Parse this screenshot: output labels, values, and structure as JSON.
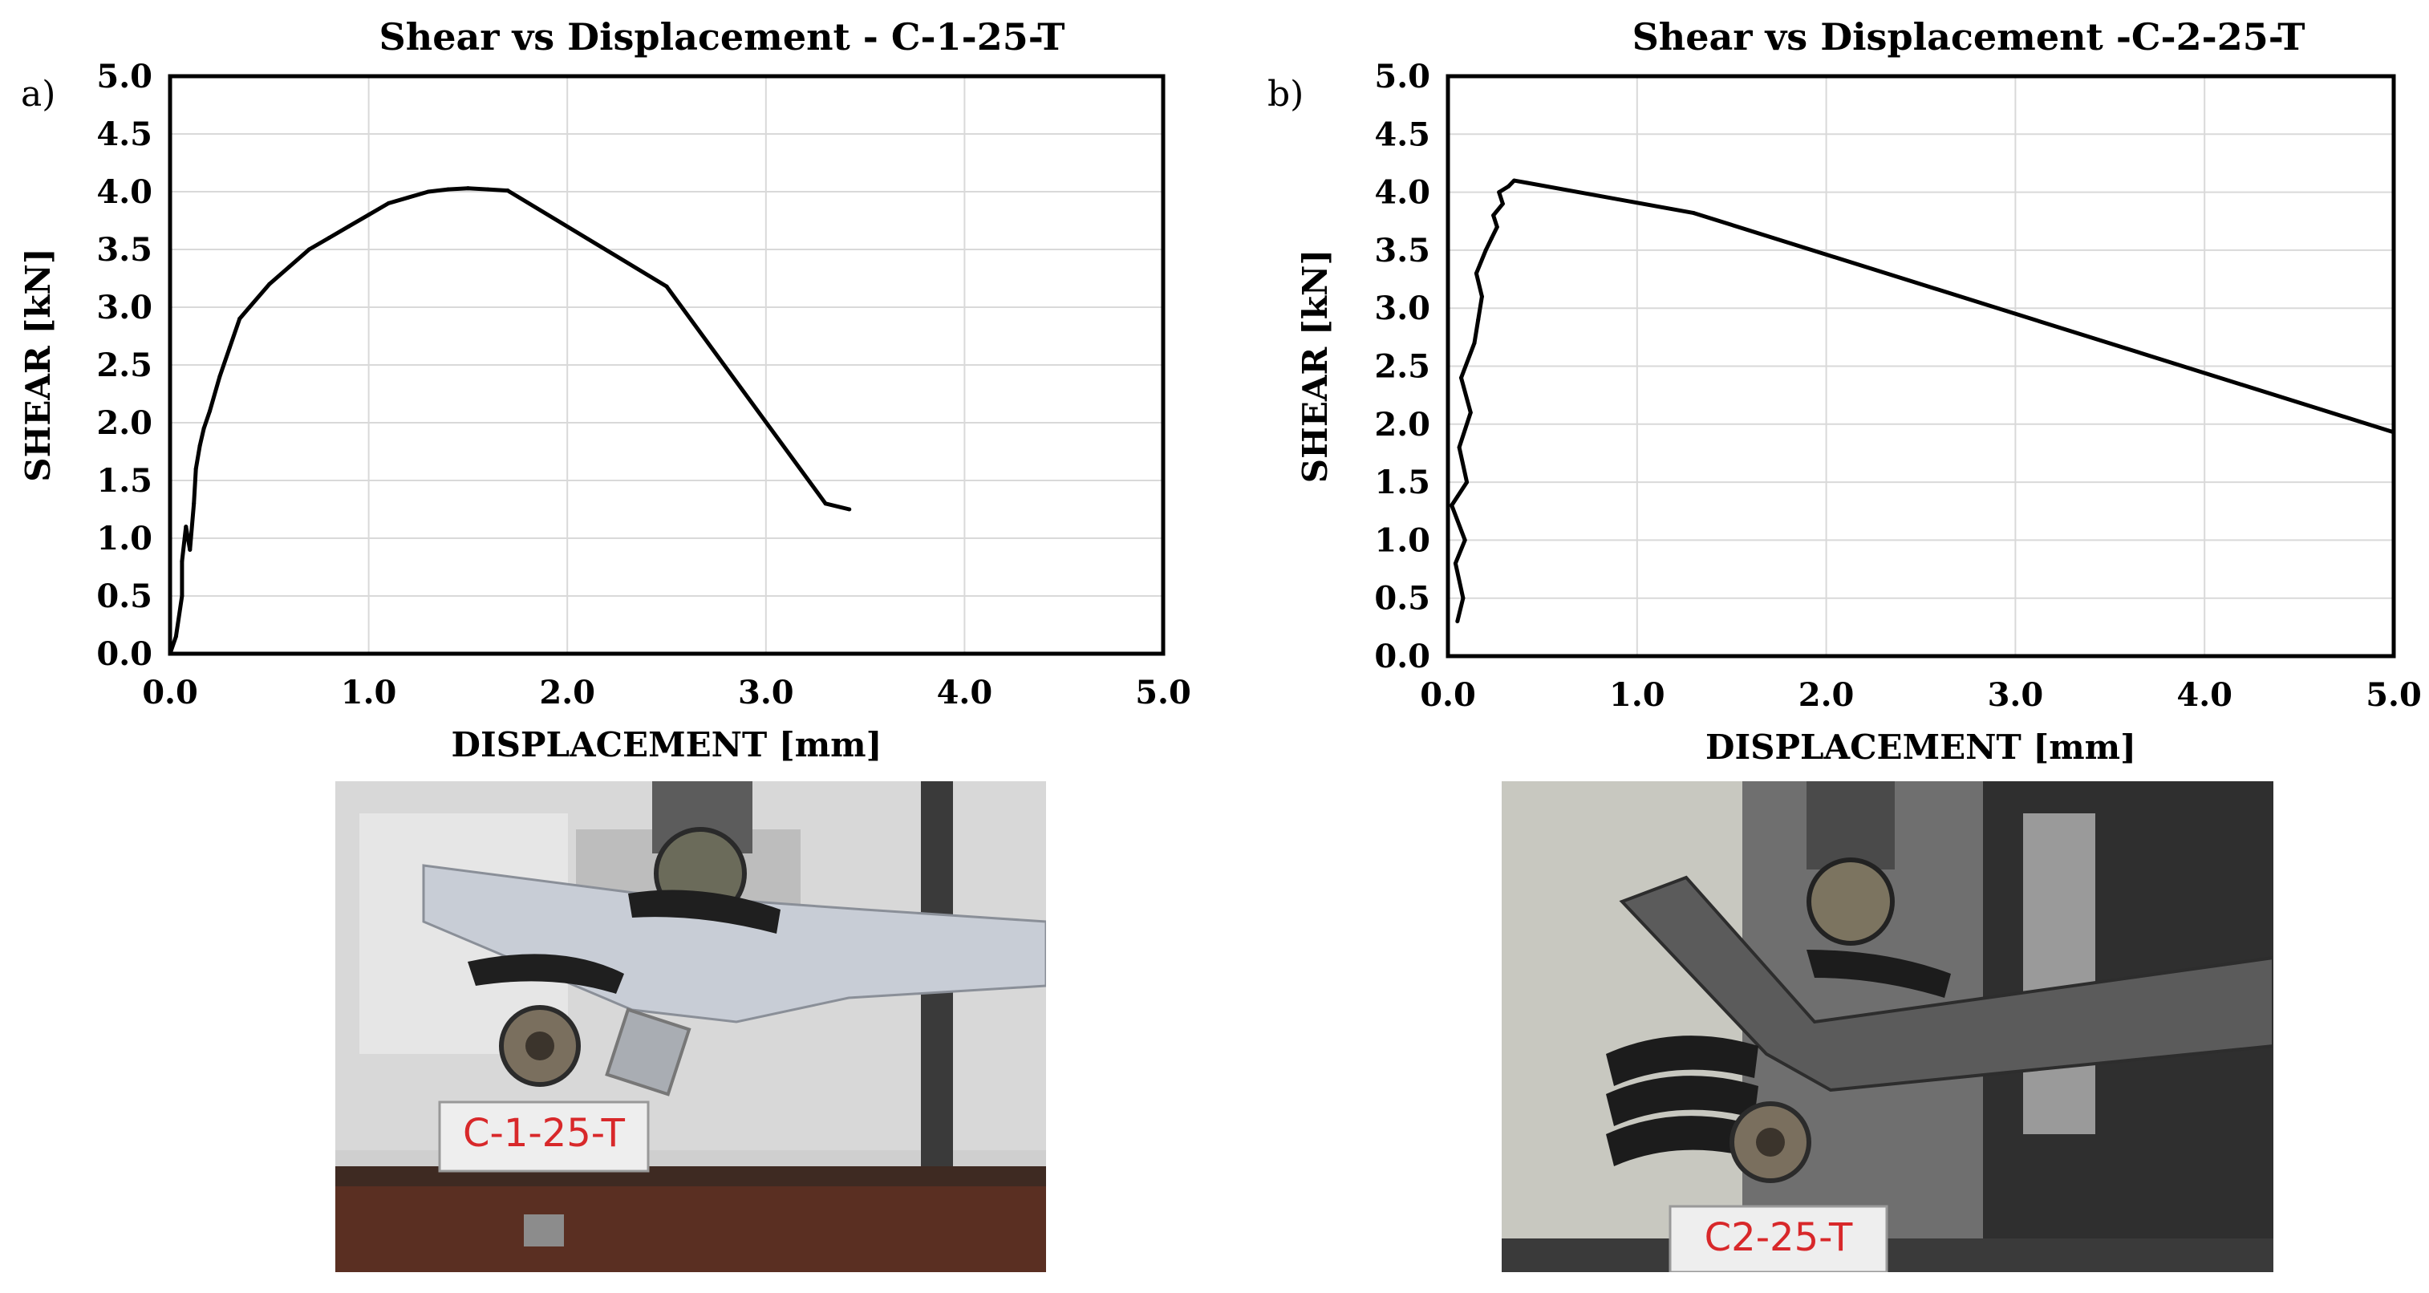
{
  "chart_data": [
    {
      "type": "line",
      "panel_label": "a)",
      "title": "Shear vs Displacement - C-1-25-T",
      "xlabel": "DISPLACEMENT [mm]",
      "ylabel": "SHEAR [kN]",
      "xlim": [
        0,
        5
      ],
      "ylim": [
        0,
        5
      ],
      "xticks": [
        "0.0",
        "1.0",
        "2.0",
        "3.0",
        "4.0",
        "5.0"
      ],
      "yticks": [
        "0.0",
        "0.5",
        "1.0",
        "1.5",
        "2.0",
        "2.5",
        "3.0",
        "3.5",
        "4.0",
        "4.5",
        "5.0"
      ],
      "grid": true,
      "series": [
        {
          "x": [
            0.0,
            0.03,
            0.06,
            0.06,
            0.08,
            0.1,
            0.12,
            0.13,
            0.15,
            0.17,
            0.2,
            0.25,
            0.3,
            0.35,
            0.4,
            0.5,
            0.6,
            0.7,
            0.8,
            0.9,
            1.0,
            1.1,
            1.2,
            1.3,
            1.4,
            1.5,
            1.6,
            1.7,
            2.5,
            3.3,
            3.42
          ],
          "y": [
            0.0,
            0.15,
            0.5,
            0.8,
            1.1,
            0.9,
            1.3,
            1.6,
            1.8,
            1.95,
            2.1,
            2.4,
            2.65,
            2.9,
            3.0,
            3.2,
            3.35,
            3.5,
            3.6,
            3.7,
            3.8,
            3.9,
            3.95,
            4.0,
            4.02,
            4.03,
            4.02,
            4.01,
            3.18,
            1.3,
            1.25
          ]
        }
      ],
      "photo_label": "C-1-25-T"
    },
    {
      "type": "line",
      "panel_label": "b)",
      "title": "Shear vs Displacement -C-2-25-T",
      "xlabel": "DISPLACEMENT [mm]",
      "ylabel": "SHEAR  [kN]",
      "xlim": [
        0,
        5
      ],
      "ylim": [
        0,
        5
      ],
      "xticks": [
        "0.0",
        "1.0",
        "2.0",
        "3.0",
        "4.0",
        "5.0"
      ],
      "yticks": [
        "0.0",
        "0.5",
        "1.0",
        "1.5",
        "2.0",
        "2.5",
        "3.0",
        "3.5",
        "4.0",
        "4.5",
        "5.0"
      ],
      "grid": true,
      "series": [
        {
          "x": [
            0.05,
            0.08,
            0.04,
            0.09,
            0.02,
            0.1,
            0.06,
            0.12,
            0.07,
            0.14,
            0.16,
            0.18,
            0.15,
            0.2,
            0.23,
            0.26,
            0.24,
            0.29,
            0.27,
            0.32,
            0.35,
            0.42,
            1.3,
            5.0
          ],
          "y": [
            0.3,
            0.5,
            0.8,
            1.0,
            1.3,
            1.5,
            1.8,
            2.1,
            2.4,
            2.7,
            2.9,
            3.1,
            3.3,
            3.5,
            3.6,
            3.7,
            3.8,
            3.9,
            4.0,
            4.05,
            4.1,
            4.08,
            3.82,
            1.93
          ]
        }
      ],
      "photo_label": "C2-25-T"
    }
  ]
}
